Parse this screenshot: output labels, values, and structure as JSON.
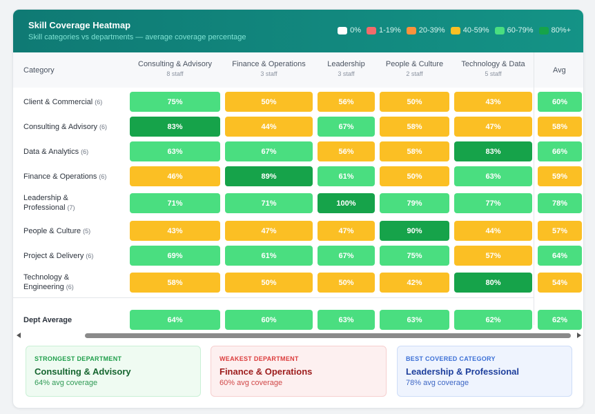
{
  "header": {
    "title": "Skill Coverage Heatmap",
    "subtitle": "Skill categories vs departments — average coverage percentage"
  },
  "legend": [
    {
      "label": "0%",
      "color": "#ffffff"
    },
    {
      "label": "1-19%",
      "color": "#f26b6b"
    },
    {
      "label": "20-39%",
      "color": "#fb923c"
    },
    {
      "label": "40-59%",
      "color": "#fbbf24"
    },
    {
      "label": "60-79%",
      "color": "#4ade80"
    },
    {
      "label": "80%+",
      "color": "#16a34a"
    }
  ],
  "table": {
    "category_header": "Category",
    "avg_header": "Avg",
    "columns": [
      {
        "name": "Consulting & Advisory",
        "staff": "8 staff"
      },
      {
        "name": "Finance & Operations",
        "staff": "3 staff"
      },
      {
        "name": "Leadership",
        "staff": "3 staff"
      },
      {
        "name": "People & Culture",
        "staff": "2 staff"
      },
      {
        "name": "Technology & Data",
        "staff": "5 staff"
      }
    ],
    "rows": [
      {
        "label": "Client & Commercial",
        "count": "(6)",
        "values": [
          75,
          50,
          56,
          50,
          43
        ],
        "avg": 60
      },
      {
        "label": "Consulting & Advisory",
        "count": "(6)",
        "values": [
          83,
          44,
          67,
          58,
          47
        ],
        "avg": 58
      },
      {
        "label": "Data & Analytics",
        "count": "(6)",
        "values": [
          63,
          67,
          56,
          58,
          83
        ],
        "avg": 66
      },
      {
        "label": "Finance & Operations",
        "count": "(6)",
        "values": [
          46,
          89,
          61,
          50,
          63
        ],
        "avg": 59
      },
      {
        "label": "Leadership & Professional",
        "count": "(7)",
        "values": [
          71,
          71,
          100,
          79,
          77
        ],
        "avg": 78
      },
      {
        "label": "People & Culture",
        "count": "(5)",
        "values": [
          43,
          47,
          47,
          90,
          44
        ],
        "avg": 57
      },
      {
        "label": "Project & Delivery",
        "count": "(6)",
        "values": [
          69,
          61,
          67,
          75,
          57
        ],
        "avg": 64
      },
      {
        "label": "Technology & Engineering",
        "count": "(6)",
        "values": [
          58,
          50,
          50,
          42,
          80
        ],
        "avg": 54
      }
    ],
    "footer": {
      "label": "Dept Average",
      "values": [
        64,
        60,
        63,
        63,
        62
      ],
      "avg": 62
    }
  },
  "summary": {
    "strongest": {
      "label": "STRONGEST DEPARTMENT",
      "value": "Consulting & Advisory",
      "sub": "64% avg coverage"
    },
    "weakest": {
      "label": "WEAKEST DEPARTMENT",
      "value": "Finance & Operations",
      "sub": "60% avg coverage"
    },
    "best": {
      "label": "BEST COVERED CATEGORY",
      "value": "Leadership & Professional",
      "sub": "78% avg coverage"
    }
  },
  "colors": {
    "band_80_plus": "#16a34a",
    "band_60_79": "#4ade80",
    "band_40_59": "#fbbf24",
    "band_20_39": "#fb923c",
    "band_1_19": "#f26b6b",
    "band_0": "#ffffff"
  }
}
